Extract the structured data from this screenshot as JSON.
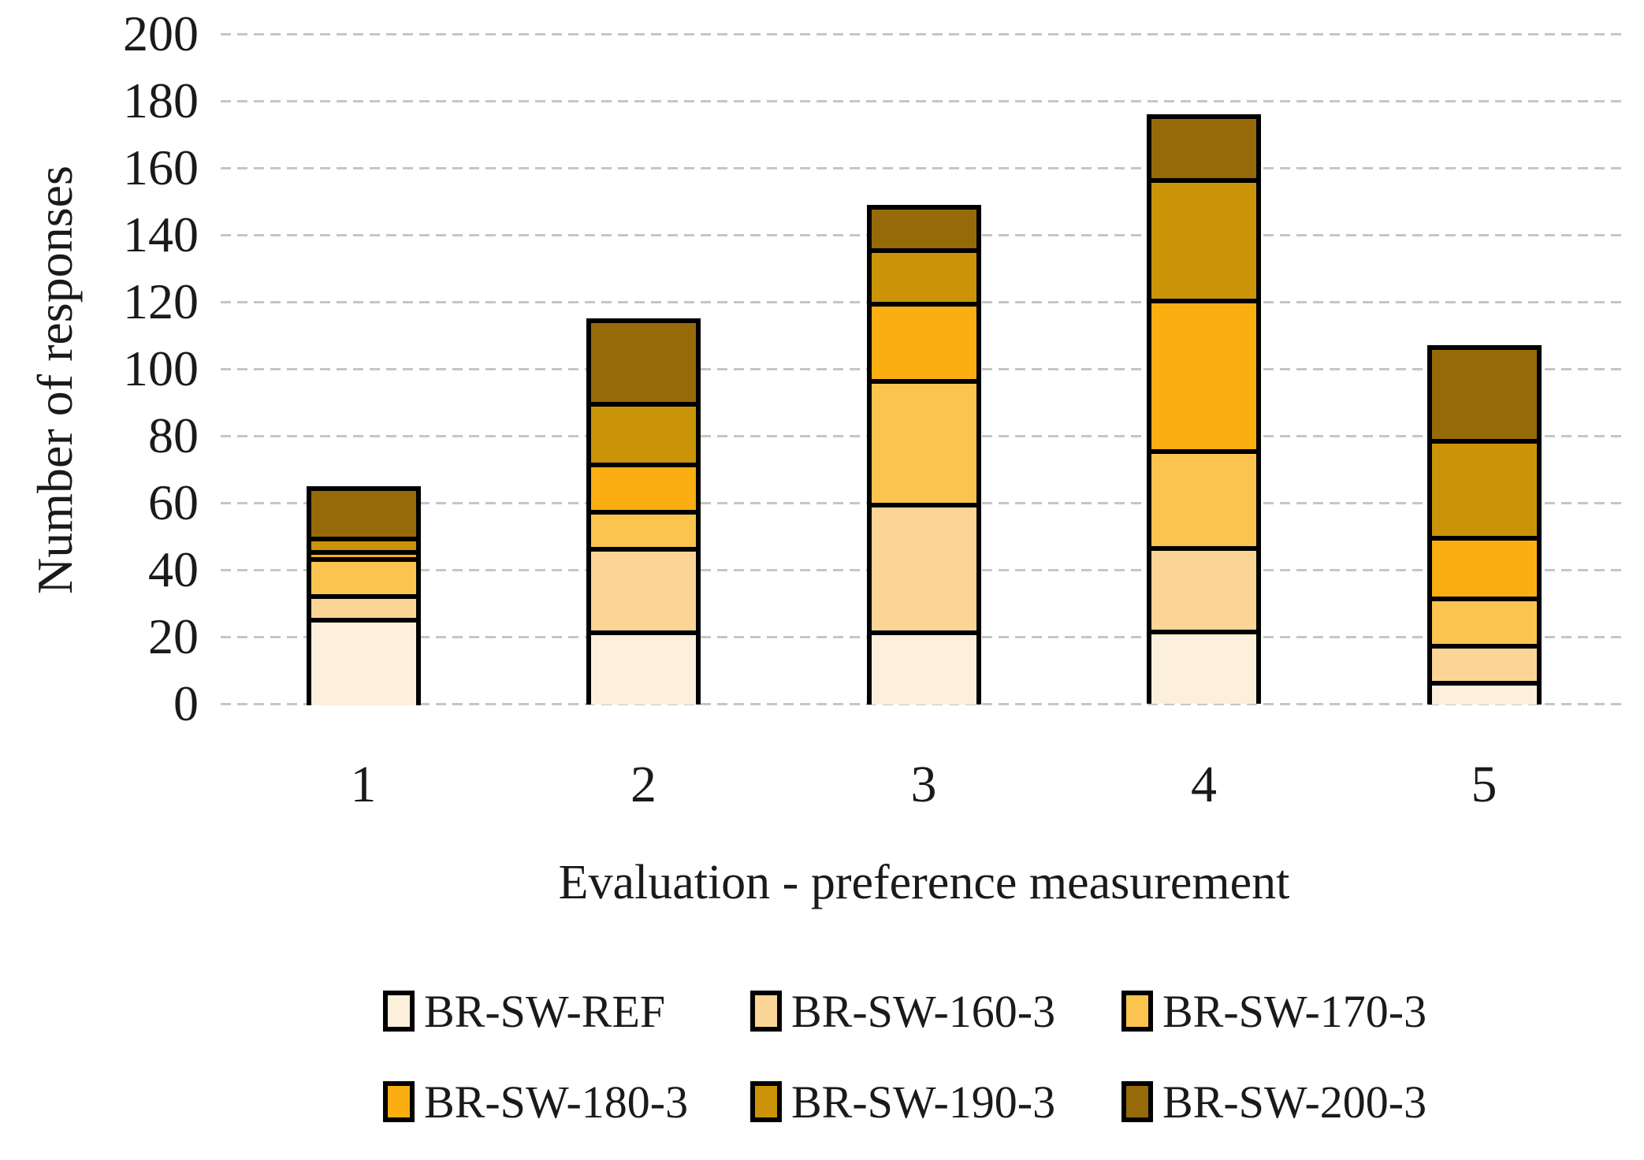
{
  "chart_data": {
    "type": "bar",
    "stacked": true,
    "title": "",
    "xlabel": "Evaluation - preference measurement",
    "ylabel": "Number of responses",
    "categories": [
      "1",
      "2",
      "3",
      "4",
      "5"
    ],
    "series": [
      {
        "name": "BR-SW-REF",
        "color": "#FCEFDC",
        "values": [
          26,
          22,
          22,
          22,
          7
        ]
      },
      {
        "name": "BR-SW-160-3",
        "color": "#FAD596",
        "values": [
          7,
          25,
          38,
          25,
          11
        ]
      },
      {
        "name": "BR-SW-170-3",
        "color": "#FBC44F",
        "values": [
          11,
          11,
          37,
          29,
          14
        ]
      },
      {
        "name": "BR-SW-180-3",
        "color": "#FAAE11",
        "values": [
          2,
          14,
          23,
          45,
          18
        ]
      },
      {
        "name": "BR-SW-190-3",
        "color": "#CB9408",
        "values": [
          4,
          18,
          16,
          36,
          29
        ]
      },
      {
        "name": "BR-SW-200-3",
        "color": "#966A08",
        "values": [
          15,
          25,
          13,
          19,
          28
        ]
      }
    ],
    "totals": [
      65,
      115,
      149,
      176,
      107
    ],
    "ylim": [
      0,
      200
    ],
    "yticks": [
      0,
      20,
      40,
      60,
      80,
      100,
      120,
      140,
      160,
      180,
      200
    ],
    "grid": "horizontal-dashed",
    "gridline_color": "#c6c6c6",
    "bar_border_color": "#000000",
    "legend_position": "bottom",
    "legend_rows": [
      [
        "BR-SW-REF",
        "BR-SW-160-3",
        "BR-SW-170-3"
      ],
      [
        "BR-SW-180-3",
        "BR-SW-190-3",
        "BR-SW-200-3"
      ]
    ]
  }
}
